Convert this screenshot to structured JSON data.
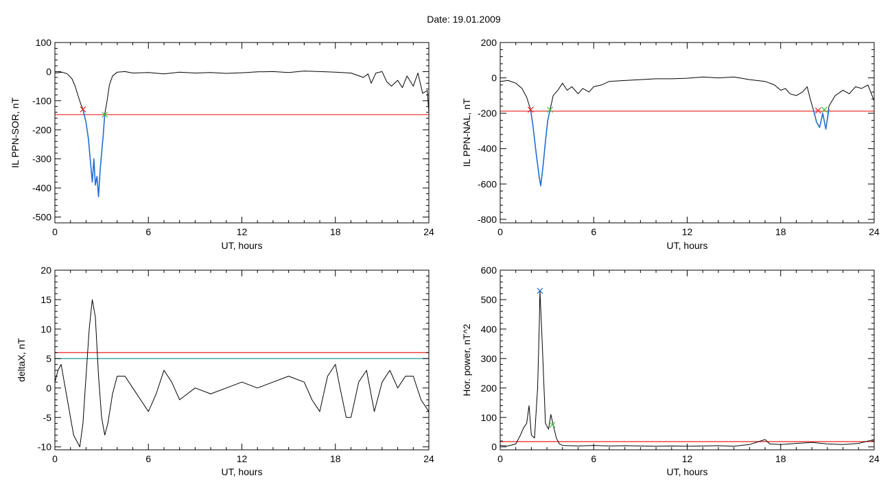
{
  "figure": {
    "title": "Date:  19.01.2009"
  },
  "colors": {
    "trace": "#000000",
    "threshold": "#e8201e",
    "baseline": "#1a9c9c",
    "highlight": "#1f6fd6",
    "start_marker": "#e8201e",
    "end_marker": "#38c430",
    "peak_marker": "#1f6fd6"
  },
  "chart_data": [
    {
      "type": "line",
      "xlabel": "UT, hours",
      "ylabel": "IL PPN-SOR, nT",
      "xlim": [
        0,
        24
      ],
      "ylim": [
        -520,
        100
      ],
      "xticks": [
        0,
        6,
        12,
        18,
        24
      ],
      "yticks": [
        -500,
        -400,
        -300,
        -200,
        -100,
        0,
        100
      ],
      "series": [
        {
          "role": "trace",
          "points": [
            [
              0,
              -5
            ],
            [
              0.5,
              -2
            ],
            [
              0.8,
              -8
            ],
            [
              1.1,
              -25
            ],
            [
              1.3,
              -50
            ],
            [
              1.5,
              -85
            ],
            [
              1.65,
              -110
            ],
            [
              1.8,
              -130
            ],
            [
              2.0,
              -175
            ],
            [
              2.15,
              -230
            ],
            [
              2.3,
              -320
            ],
            [
              2.4,
              -380
            ],
            [
              2.5,
              -300
            ],
            [
              2.6,
              -390
            ],
            [
              2.7,
              -360
            ],
            [
              2.8,
              -430
            ],
            [
              2.9,
              -340
            ],
            [
              3.0,
              -280
            ],
            [
              3.1,
              -220
            ],
            [
              3.2,
              -145
            ],
            [
              3.35,
              -100
            ],
            [
              3.5,
              -45
            ],
            [
              3.7,
              -15
            ],
            [
              4.0,
              -2
            ],
            [
              4.5,
              0
            ],
            [
              5,
              -5
            ],
            [
              6,
              -3
            ],
            [
              7,
              -8
            ],
            [
              8,
              -2
            ],
            [
              9,
              -5
            ],
            [
              10,
              -3
            ],
            [
              11,
              -6
            ],
            [
              12,
              -4
            ],
            [
              13,
              -1
            ],
            [
              14,
              0
            ],
            [
              15,
              -3
            ],
            [
              16,
              2
            ],
            [
              17,
              0
            ],
            [
              18,
              -2
            ],
            [
              19,
              -5
            ],
            [
              19.8,
              -20
            ],
            [
              20.1,
              -8
            ],
            [
              20.3,
              -40
            ],
            [
              20.6,
              -5
            ],
            [
              21,
              0
            ],
            [
              21.3,
              -35
            ],
            [
              21.6,
              -50
            ],
            [
              22,
              -30
            ],
            [
              22.3,
              -55
            ],
            [
              22.6,
              -15
            ],
            [
              23,
              -50
            ],
            [
              23.3,
              -5
            ],
            [
              23.6,
              -75
            ],
            [
              23.9,
              -65
            ],
            [
              24,
              -140
            ]
          ]
        },
        {
          "role": "highlight",
          "points": [
            [
              1.8,
              -130
            ],
            [
              2.0,
              -175
            ],
            [
              2.15,
              -230
            ],
            [
              2.3,
              -320
            ],
            [
              2.4,
              -380
            ],
            [
              2.5,
              -300
            ],
            [
              2.6,
              -390
            ],
            [
              2.7,
              -360
            ],
            [
              2.8,
              -430
            ],
            [
              2.9,
              -340
            ],
            [
              3.0,
              -280
            ],
            [
              3.1,
              -220
            ],
            [
              3.2,
              -145
            ]
          ]
        }
      ],
      "hlines": [
        {
          "role": "threshold",
          "y": -148
        }
      ],
      "markers": [
        {
          "role": "start_marker",
          "x": 1.8,
          "y": -130
        },
        {
          "role": "end_marker",
          "x": 3.2,
          "y": -148
        }
      ]
    },
    {
      "type": "line",
      "xlabel": "UT, hours",
      "ylabel": "IL PPN-NAL, nT",
      "xlim": [
        0,
        24
      ],
      "ylim": [
        -820,
        200
      ],
      "xticks": [
        0,
        6,
        12,
        18,
        24
      ],
      "yticks": [
        -800,
        -600,
        -400,
        -200,
        0,
        200
      ],
      "series": [
        {
          "role": "trace",
          "points": [
            [
              0,
              -20
            ],
            [
              0.5,
              -15
            ],
            [
              1.0,
              -30
            ],
            [
              1.4,
              -60
            ],
            [
              1.7,
              -110
            ],
            [
              1.95,
              -180
            ],
            [
              2.1,
              -270
            ],
            [
              2.3,
              -420
            ],
            [
              2.5,
              -560
            ],
            [
              2.6,
              -610
            ],
            [
              2.75,
              -500
            ],
            [
              2.9,
              -360
            ],
            [
              3.05,
              -240
            ],
            [
              3.2,
              -180
            ],
            [
              3.4,
              -100
            ],
            [
              3.7,
              -70
            ],
            [
              4.0,
              -30
            ],
            [
              4.3,
              -70
            ],
            [
              4.6,
              -50
            ],
            [
              5.0,
              -90
            ],
            [
              5.3,
              -60
            ],
            [
              5.7,
              -80
            ],
            [
              6,
              -50
            ],
            [
              6.5,
              -40
            ],
            [
              7,
              -20
            ],
            [
              8,
              -15
            ],
            [
              9,
              -10
            ],
            [
              10,
              -5
            ],
            [
              11,
              -5
            ],
            [
              12,
              -2
            ],
            [
              13,
              5
            ],
            [
              14,
              0
            ],
            [
              15,
              5
            ],
            [
              16,
              -10
            ],
            [
              17,
              -20
            ],
            [
              17.6,
              -40
            ],
            [
              18,
              -70
            ],
            [
              18.3,
              -60
            ],
            [
              18.6,
              -90
            ],
            [
              19,
              -100
            ],
            [
              19.4,
              -80
            ],
            [
              19.7,
              -50
            ],
            [
              19.9,
              -120
            ],
            [
              20.1,
              -180
            ],
            [
              20.3,
              -250
            ],
            [
              20.5,
              -280
            ],
            [
              20.7,
              -200
            ],
            [
              20.9,
              -290
            ],
            [
              21.1,
              -160
            ],
            [
              21.5,
              -100
            ],
            [
              22,
              -70
            ],
            [
              22.4,
              -90
            ],
            [
              22.8,
              -50
            ],
            [
              23.2,
              -60
            ],
            [
              23.6,
              -40
            ],
            [
              24,
              -130
            ]
          ]
        },
        {
          "role": "highlight",
          "points": [
            [
              1.95,
              -180
            ],
            [
              2.1,
              -270
            ],
            [
              2.3,
              -420
            ],
            [
              2.5,
              -560
            ],
            [
              2.6,
              -610
            ],
            [
              2.75,
              -500
            ],
            [
              2.9,
              -360
            ],
            [
              3.05,
              -240
            ],
            [
              3.2,
              -180
            ]
          ]
        },
        {
          "role": "highlight",
          "points": [
            [
              20.1,
              -180
            ],
            [
              20.3,
              -250
            ],
            [
              20.5,
              -280
            ],
            [
              20.7,
              -200
            ],
            [
              20.9,
              -290
            ],
            [
              21.1,
              -175
            ]
          ]
        }
      ],
      "hlines": [
        {
          "role": "threshold",
          "y": -188
        }
      ],
      "markers": [
        {
          "role": "start_marker",
          "x": 1.95,
          "y": -180
        },
        {
          "role": "end_marker",
          "x": 3.2,
          "y": -180
        },
        {
          "role": "start_marker",
          "x": 20.4,
          "y": -185
        },
        {
          "role": "end_marker",
          "x": 20.8,
          "y": -180
        }
      ]
    },
    {
      "type": "line",
      "xlabel": "UT, hours",
      "ylabel": "deltaX, nT",
      "xlim": [
        0,
        24
      ],
      "ylim": [
        -10.5,
        20
      ],
      "xticks": [
        0,
        6,
        12,
        18,
        24
      ],
      "yticks": [
        -10,
        -5,
        0,
        5,
        10,
        15,
        20
      ],
      "series": [
        {
          "role": "trace",
          "points": [
            [
              0,
              1
            ],
            [
              0.2,
              3
            ],
            [
              0.4,
              4
            ],
            [
              0.6,
              1
            ],
            [
              0.8,
              -2
            ],
            [
              1.0,
              -5
            ],
            [
              1.2,
              -8
            ],
            [
              1.4,
              -9
            ],
            [
              1.6,
              -10
            ],
            [
              1.8,
              -6
            ],
            [
              2.0,
              2
            ],
            [
              2.2,
              10
            ],
            [
              2.4,
              15
            ],
            [
              2.6,
              12
            ],
            [
              2.8,
              2
            ],
            [
              3.0,
              -5
            ],
            [
              3.2,
              -8
            ],
            [
              3.4,
              -6
            ],
            [
              3.7,
              -1
            ],
            [
              4.0,
              2
            ],
            [
              4.5,
              2
            ],
            [
              5.0,
              0
            ],
            [
              5.5,
              -2
            ],
            [
              6.0,
              -4
            ],
            [
              6.5,
              -1
            ],
            [
              7.0,
              3
            ],
            [
              7.5,
              1
            ],
            [
              8.0,
              -2
            ],
            [
              8.5,
              -1
            ],
            [
              9,
              0
            ],
            [
              10,
              -1
            ],
            [
              11,
              0
            ],
            [
              12,
              1
            ],
            [
              13,
              0
            ],
            [
              14,
              1
            ],
            [
              15,
              2
            ],
            [
              16,
              1
            ],
            [
              16.5,
              -2
            ],
            [
              17.0,
              -4
            ],
            [
              17.5,
              2
            ],
            [
              18.0,
              4
            ],
            [
              18.3,
              0
            ],
            [
              18.7,
              -5
            ],
            [
              19.0,
              -5
            ],
            [
              19.5,
              1
            ],
            [
              20,
              3
            ],
            [
              20.5,
              -4
            ],
            [
              21,
              1
            ],
            [
              21.5,
              3
            ],
            [
              22,
              0
            ],
            [
              22.5,
              2
            ],
            [
              23,
              2
            ],
            [
              23.5,
              -2
            ],
            [
              24,
              -4
            ]
          ]
        }
      ],
      "hlines": [
        {
          "role": "threshold",
          "y": 6
        },
        {
          "role": "baseline",
          "y": 5
        }
      ],
      "markers": []
    },
    {
      "type": "line",
      "xlabel": "UT, hours",
      "ylabel": "Hor. power, nT^2",
      "xlim": [
        0,
        24
      ],
      "ylim": [
        -10,
        600
      ],
      "xticks": [
        0,
        6,
        12,
        18,
        24
      ],
      "yticks": [
        0,
        100,
        200,
        300,
        400,
        500,
        600
      ],
      "series": [
        {
          "role": "trace",
          "points": [
            [
              0,
              5
            ],
            [
              0.5,
              3
            ],
            [
              1.0,
              10
            ],
            [
              1.3,
              40
            ],
            [
              1.5,
              65
            ],
            [
              1.7,
              80
            ],
            [
              1.85,
              140
            ],
            [
              2.0,
              40
            ],
            [
              2.2,
              30
            ],
            [
              2.4,
              200
            ],
            [
              2.5,
              400
            ],
            [
              2.55,
              530
            ],
            [
              2.7,
              350
            ],
            [
              2.9,
              80
            ],
            [
              3.1,
              60
            ],
            [
              3.25,
              110
            ],
            [
              3.4,
              75
            ],
            [
              3.6,
              30
            ],
            [
              3.8,
              10
            ],
            [
              4,
              5
            ],
            [
              5,
              3
            ],
            [
              6,
              5
            ],
            [
              7,
              3
            ],
            [
              8,
              4
            ],
            [
              9,
              3
            ],
            [
              10,
              2
            ],
            [
              11,
              3
            ],
            [
              12,
              2
            ],
            [
              13,
              3
            ],
            [
              14,
              4
            ],
            [
              15,
              2
            ],
            [
              16,
              8
            ],
            [
              17,
              25
            ],
            [
              17.3,
              10
            ],
            [
              18,
              8
            ],
            [
              19,
              12
            ],
            [
              20,
              15
            ],
            [
              21,
              10
            ],
            [
              22,
              8
            ],
            [
              23,
              12
            ],
            [
              24,
              25
            ]
          ]
        }
      ],
      "hlines": [
        {
          "role": "threshold",
          "y": 18
        }
      ],
      "markers": [
        {
          "role": "peak_marker",
          "x": 2.55,
          "y": 530
        },
        {
          "role": "end_marker",
          "x": 3.35,
          "y": 75
        }
      ]
    }
  ]
}
